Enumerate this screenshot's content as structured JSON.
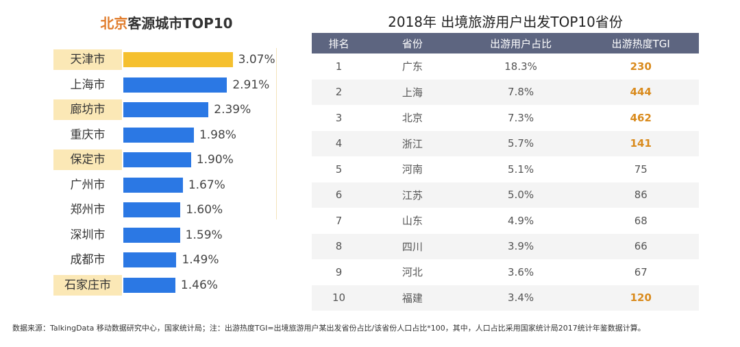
{
  "chart_data": [
    {
      "type": "bar",
      "orientation": "horizontal",
      "title_highlight": "北京",
      "title_rest": "客源城市TOP10",
      "categories": [
        "天津市",
        "上海市",
        "廊坊市",
        "重庆市",
        "保定市",
        "广州市",
        "郑州市",
        "深圳市",
        "成都市",
        "石家庄市"
      ],
      "values": [
        3.07,
        2.91,
        2.39,
        1.98,
        1.9,
        1.67,
        1.6,
        1.59,
        1.49,
        1.46
      ],
      "labels": [
        "3.07%",
        "2.91%",
        "2.39%",
        "1.98%",
        "1.90%",
        "1.67%",
        "1.60%",
        "1.59%",
        "1.49%",
        "1.46%"
      ],
      "colors": {
        "top": "#f5c02e",
        "default": "#2b78e4",
        "label_highlight": "#fbe8b6",
        "title_highlight": "#e07b2a"
      }
    },
    {
      "type": "table",
      "title": "2018年 出境旅游用户出发TOP10省份",
      "columns": [
        "排名",
        "省份",
        "出游用户占比",
        "出游热度TGI"
      ],
      "rows": [
        [
          "1",
          "广东",
          "18.3%",
          "230"
        ],
        [
          "2",
          "上海",
          "7.8%",
          "444"
        ],
        [
          "3",
          "北京",
          "7.3%",
          "462"
        ],
        [
          "4",
          "浙江",
          "5.7%",
          "141"
        ],
        [
          "5",
          "河南",
          "5.1%",
          "75"
        ],
        [
          "6",
          "江苏",
          "5.0%",
          "86"
        ],
        [
          "7",
          "山东",
          "4.9%",
          "68"
        ],
        [
          "8",
          "四川",
          "3.9%",
          "66"
        ],
        [
          "9",
          "河北",
          "3.6%",
          "67"
        ],
        [
          "10",
          "福建",
          "3.4%",
          "120"
        ]
      ],
      "colors": {
        "header": "#5d6580",
        "tgi_highlight": "#d98a1c"
      }
    }
  ],
  "footer": "数据来源：TalkingData 移动数据研究中心，国家统计局；注：出游热度TGI=出境旅游用户某出发省份占比/该省份人口占比*100，其中，人口占比采用国家统计局2017统计年鉴数据计算。"
}
